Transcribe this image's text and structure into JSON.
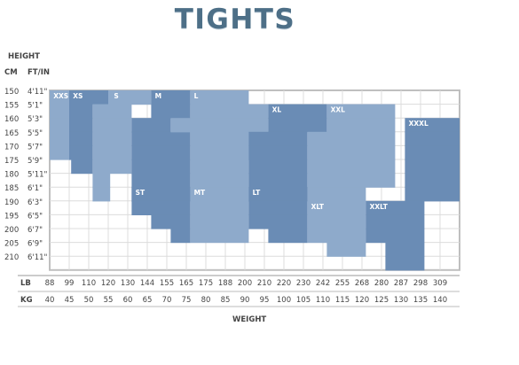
{
  "header": {
    "title": "TIGHTS"
  },
  "axis_titles": {
    "height": "HEIGHT",
    "cm": "CM",
    "ftin": "FT/IN",
    "lb": "LB",
    "kg": "KG",
    "weight": "WEIGHT"
  },
  "chart_data": {
    "type": "heatmap",
    "title": "TIGHTS",
    "rows": [
      {
        "cm": "150",
        "ftin": "4'11\""
      },
      {
        "cm": "155",
        "ftin": "5'1\""
      },
      {
        "cm": "160",
        "ftin": "5'3\""
      },
      {
        "cm": "165",
        "ftin": "5'5\""
      },
      {
        "cm": "170",
        "ftin": "5'7\""
      },
      {
        "cm": "175",
        "ftin": "5'9\""
      },
      {
        "cm": "180",
        "ftin": "5'11\""
      },
      {
        "cm": "185",
        "ftin": "6'1\""
      },
      {
        "cm": "190",
        "ftin": "6'3\""
      },
      {
        "cm": "195",
        "ftin": "6'5\""
      },
      {
        "cm": "200",
        "ftin": "6'7\""
      },
      {
        "cm": "205",
        "ftin": "6'9\""
      },
      {
        "cm": "210",
        "ftin": "6'11\""
      }
    ],
    "columns": [
      {
        "lb": "88",
        "kg": "40"
      },
      {
        "lb": "99",
        "kg": "45"
      },
      {
        "lb": "110",
        "kg": "50"
      },
      {
        "lb": "120",
        "kg": "55"
      },
      {
        "lb": "130",
        "kg": "60"
      },
      {
        "lb": "144",
        "kg": "65"
      },
      {
        "lb": "155",
        "kg": "70"
      },
      {
        "lb": "165",
        "kg": "75"
      },
      {
        "lb": "175",
        "kg": "80"
      },
      {
        "lb": "188",
        "kg": "85"
      },
      {
        "lb": "200",
        "kg": "90"
      },
      {
        "lb": "210",
        "kg": "95"
      },
      {
        "lb": "220",
        "kg": "100"
      },
      {
        "lb": "230",
        "kg": "105"
      },
      {
        "lb": "242",
        "kg": "110"
      },
      {
        "lb": "255",
        "kg": "115"
      },
      {
        "lb": "268",
        "kg": "120"
      },
      {
        "lb": "280",
        "kg": "125"
      },
      {
        "lb": "287",
        "kg": "130"
      },
      {
        "lb": "298",
        "kg": "135"
      },
      {
        "lb": "309",
        "kg": "140"
      }
    ],
    "colors": {
      "dark": "#6a8cb5",
      "light": "#8eaacb",
      "grid": "#dcdcdc",
      "frame": "#bfbfbf"
    },
    "zones": [
      {
        "name": "XXS",
        "shade": "light",
        "rows": [
          0,
          0,
          0,
          0,
          0,
          0,
          0,
          0,
          0,
          0,
          0,
          0,
          0,
          0,
          0,
          0,
          0,
          0,
          0,
          0,
          0,
          0,
          0,
          0
        ]
      },
      {
        "name": "XS",
        "shade": "dark",
        "rows": []
      },
      {
        "name": "S",
        "shade": "light",
        "rows": []
      },
      {
        "name": "M",
        "shade": "dark",
        "rows": []
      },
      {
        "name": "L",
        "shade": "light",
        "rows": []
      },
      {
        "name": "XL",
        "shade": "dark",
        "rows": []
      },
      {
        "name": "XXL",
        "shade": "light",
        "rows": []
      },
      {
        "name": "XXXL",
        "shade": "dark",
        "rows": []
      },
      {
        "name": "ST",
        "shade": "dark",
        "rows": []
      },
      {
        "name": "MT",
        "shade": "light",
        "rows": []
      },
      {
        "name": "LT",
        "shade": "dark",
        "rows": []
      },
      {
        "name": "XLT",
        "shade": "light",
        "rows": []
      },
      {
        "name": "XXLT",
        "shade": "dark",
        "rows": []
      }
    ]
  }
}
